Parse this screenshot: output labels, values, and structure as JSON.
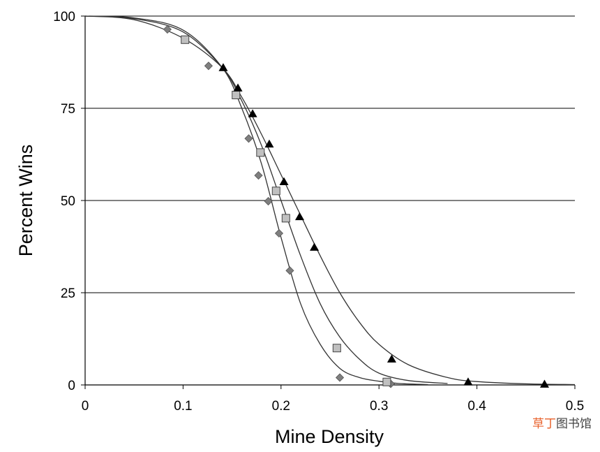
{
  "chart_data": {
    "type": "scatter",
    "title": "",
    "xlabel": "Mine Density",
    "ylabel": "Percent Wins",
    "xlim": [
      0,
      0.5
    ],
    "ylim": [
      0,
      100
    ],
    "x_ticks": [
      "0",
      "0.1",
      "0.2",
      "0.3",
      "0.4",
      "0.5"
    ],
    "y_ticks": [
      "0",
      "25",
      "50",
      "75",
      "100"
    ],
    "grid": "horizontal",
    "legend": "none",
    "series": [
      {
        "marker": "diamond",
        "color": "#7f7f7f",
        "points": [
          [
            0.084,
            96.4
          ],
          [
            0.126,
            86.5
          ],
          [
            0.167,
            66.8
          ],
          [
            0.177,
            56.8
          ],
          [
            0.187,
            49.8
          ],
          [
            0.198,
            41.1
          ],
          [
            0.209,
            31.0
          ],
          [
            0.26,
            2.0
          ],
          [
            0.312,
            0.3
          ]
        ],
        "fit_curve": [
          [
            0,
            100
          ],
          [
            0.05,
            99.5
          ],
          [
            0.1,
            96.2
          ],
          [
            0.14,
            86
          ],
          [
            0.16,
            75
          ],
          [
            0.18,
            60
          ],
          [
            0.2,
            40
          ],
          [
            0.22,
            22
          ],
          [
            0.24,
            11
          ],
          [
            0.26,
            4.5
          ],
          [
            0.28,
            2
          ],
          [
            0.3,
            1
          ],
          [
            0.32,
            0.4
          ],
          [
            0.35,
            0.1
          ]
        ]
      },
      {
        "marker": "square",
        "color": "#c0c0c0",
        "points": [
          [
            0.102,
            93.6
          ],
          [
            0.154,
            78.6
          ],
          [
            0.179,
            63.0
          ],
          [
            0.195,
            52.6
          ],
          [
            0.205,
            45.2
          ],
          [
            0.257,
            10.0
          ],
          [
            0.308,
            0.8
          ]
        ],
        "fit_curve": [
          [
            0,
            100
          ],
          [
            0.05,
            99.3
          ],
          [
            0.1,
            95.7
          ],
          [
            0.14,
            86
          ],
          [
            0.16,
            77
          ],
          [
            0.18,
            65
          ],
          [
            0.2,
            50
          ],
          [
            0.22,
            35
          ],
          [
            0.24,
            22
          ],
          [
            0.26,
            13
          ],
          [
            0.28,
            7
          ],
          [
            0.3,
            3.2
          ],
          [
            0.33,
            1.2
          ],
          [
            0.37,
            0.4
          ]
        ]
      },
      {
        "marker": "triangle",
        "color": "#000000",
        "points": [
          [
            0.141,
            86.0
          ],
          [
            0.156,
            80.5
          ],
          [
            0.171,
            73.5
          ],
          [
            0.188,
            65.3
          ],
          [
            0.203,
            55.1
          ],
          [
            0.219,
            45.6
          ],
          [
            0.234,
            37.3
          ],
          [
            0.313,
            7.0
          ],
          [
            0.391,
            0.8
          ],
          [
            0.469,
            0.2
          ]
        ],
        "fit_curve": [
          [
            0,
            100
          ],
          [
            0.05,
            99
          ],
          [
            0.1,
            94
          ],
          [
            0.14,
            86
          ],
          [
            0.16,
            78
          ],
          [
            0.18,
            68
          ],
          [
            0.2,
            57
          ],
          [
            0.22,
            46
          ],
          [
            0.24,
            35
          ],
          [
            0.26,
            25
          ],
          [
            0.28,
            17
          ],
          [
            0.3,
            11
          ],
          [
            0.33,
            5.5
          ],
          [
            0.37,
            2
          ],
          [
            0.4,
            0.9
          ],
          [
            0.45,
            0.3
          ],
          [
            0.5,
            0.1
          ]
        ]
      }
    ]
  },
  "watermark": {
    "part_a": "草丁",
    "part_b": "图书馆"
  }
}
